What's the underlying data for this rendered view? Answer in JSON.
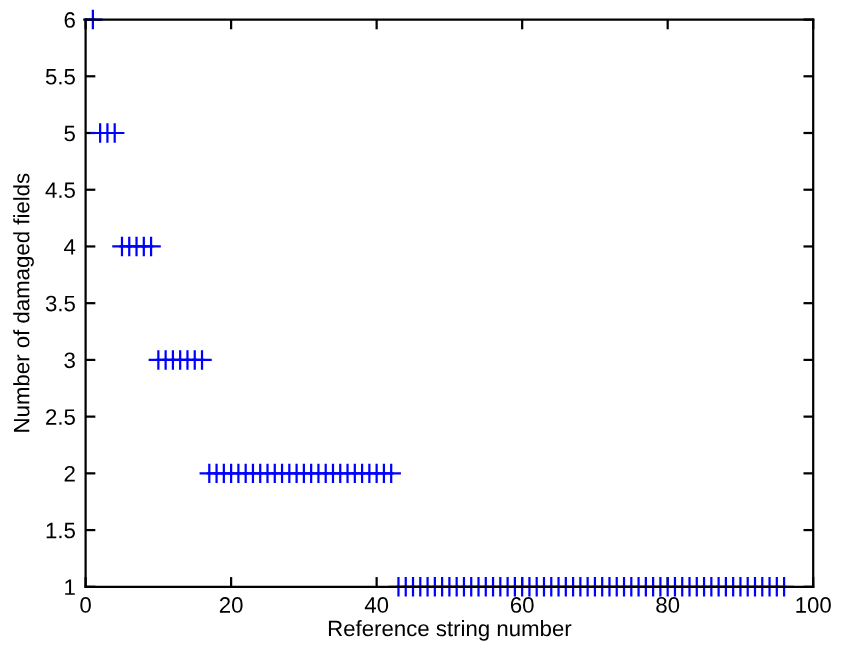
{
  "chart_data": {
    "type": "scatter",
    "xlabel": "Reference string number",
    "ylabel": "Number of damaged fields",
    "x": [
      1,
      2,
      3,
      4,
      5,
      6,
      7,
      8,
      9,
      10,
      11,
      12,
      13,
      14,
      15,
      16,
      17,
      18,
      19,
      20,
      21,
      22,
      23,
      24,
      25,
      26,
      27,
      28,
      29,
      30,
      31,
      32,
      33,
      34,
      35,
      36,
      37,
      38,
      39,
      40,
      41,
      42,
      43,
      44,
      45,
      46,
      47,
      48,
      49,
      50,
      51,
      52,
      53,
      54,
      55,
      56,
      57,
      58,
      59,
      60,
      61,
      62,
      63,
      64,
      65,
      66,
      67,
      68,
      69,
      70,
      71,
      72,
      73,
      74,
      75,
      76,
      77,
      78,
      79,
      80,
      81,
      82,
      83,
      84,
      85,
      86,
      87,
      88,
      89,
      90,
      91,
      92,
      93,
      94,
      95,
      96
    ],
    "series": [
      {
        "color": "#0000ff",
        "values": [
          6,
          5,
          5,
          5,
          4,
          4,
          4,
          4,
          4,
          3,
          3,
          3,
          3,
          3,
          3,
          3,
          2,
          2,
          2,
          2,
          2,
          2,
          2,
          2,
          2,
          2,
          2,
          2,
          2,
          2,
          2,
          2,
          2,
          2,
          2,
          2,
          2,
          2,
          2,
          2,
          2,
          2,
          1,
          1,
          1,
          1,
          1,
          1,
          1,
          1,
          1,
          1,
          1,
          1,
          1,
          1,
          1,
          1,
          1,
          1,
          1,
          1,
          1,
          1,
          1,
          1,
          1,
          1,
          1,
          1,
          1,
          1,
          1,
          1,
          1,
          1,
          1,
          1,
          1,
          1,
          1,
          1,
          1,
          1,
          1,
          1,
          1,
          1,
          1,
          1,
          1,
          1,
          1,
          1,
          1,
          1
        ]
      }
    ],
    "marker": "cross",
    "grid": false,
    "legend": false,
    "xlim": [
      0,
      100
    ],
    "xticks": [
      0,
      20,
      40,
      60,
      80,
      100
    ],
    "ylim": [
      1,
      6
    ],
    "yticks": [
      1,
      1.5,
      2,
      2.5,
      3,
      3.5,
      4,
      4.5,
      5,
      5.5,
      6
    ]
  }
}
